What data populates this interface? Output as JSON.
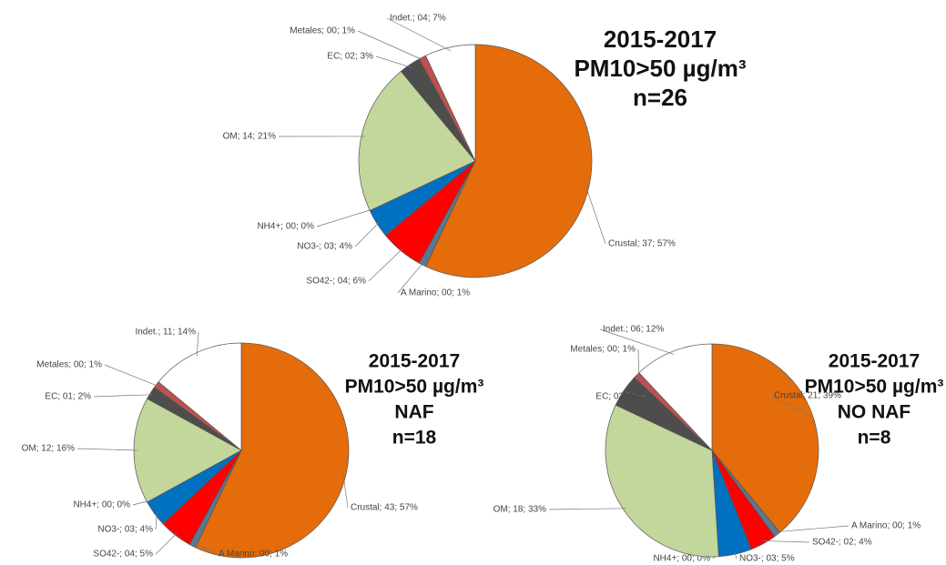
{
  "chart_data": [
    {
      "type": "pie",
      "title": [
        "2015-2017",
        "PM10>50 µg/m³",
        "n=26"
      ],
      "values": [
        57,
        1,
        6,
        4,
        0,
        21,
        3,
        1,
        7
      ],
      "value_labels": [
        "Crustal; 37; 57%",
        "A Marino; 00; 1%",
        "SO42-; 04; 6%",
        "NO3-; 03; 4%",
        "NH4+; 00; 0%",
        "OM; 14; 21%",
        "EC; 02; 3%",
        "Metales; 00; 1%",
        "Indet.; 04; 7%"
      ],
      "colors": [
        "#e46c0a",
        "#5a7890",
        "#ff0000",
        "#0070c0",
        "#e8e800",
        "#c3d69b",
        "#4d4d4d",
        "#c0504d",
        "#ffffff"
      ]
    },
    {
      "type": "pie",
      "title": [
        "2015-2017",
        "PM10>50 µg/m³",
        "NAF",
        "n=18"
      ],
      "values": [
        57,
        1,
        5,
        4,
        0,
        16,
        2,
        1,
        14
      ],
      "value_labels": [
        "Crustal; 43; 57%",
        "A Marino; 00; 1%",
        "SO42-; 04; 5%",
        "NO3-; 03; 4%",
        "NH4+; 00; 0%",
        "OM; 12; 16%",
        "EC; 01; 2%",
        "Metales; 00; 1%",
        "Indet.; 11; 14%"
      ],
      "colors": [
        "#e46c0a",
        "#5a7890",
        "#ff0000",
        "#0070c0",
        "#e8e800",
        "#c3d69b",
        "#4d4d4d",
        "#c0504d",
        "#ffffff"
      ]
    },
    {
      "type": "pie",
      "title": [
        "2015-2017",
        "PM10>50 µg/m³",
        "NO NAF",
        "n=8"
      ],
      "values": [
        39,
        1,
        4,
        5,
        0,
        33,
        5,
        1,
        12
      ],
      "value_labels": [
        "Crustal; 21; 39%",
        "A Marino; 00; 1%",
        "SO42-; 02; 4%",
        "NO3-; 03; 5%",
        "NH4+; 00; 0%",
        "OM; 18; 33%",
        "EC; 03; 5%",
        "Metales; 00; 1%",
        "Indet.; 06; 12%"
      ],
      "colors": [
        "#e46c0a",
        "#5a7890",
        "#ff0000",
        "#0070c0",
        "#e8e800",
        "#c3d69b",
        "#4d4d4d",
        "#c0504d",
        "#ffffff"
      ]
    }
  ]
}
